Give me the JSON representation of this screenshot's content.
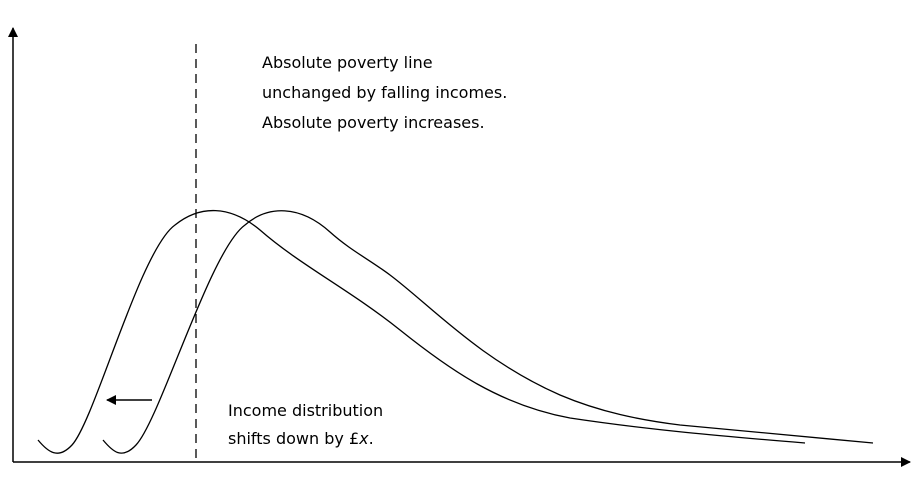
{
  "annotations": {
    "poverty_line": [
      "Absolute poverty line",
      "unchanged by falling incomes.",
      "Absolute poverty increases."
    ],
    "shift": {
      "line1": "Income distribution",
      "line2_before": "shifts down by £",
      "line2_italic": "x",
      "line2_after": "."
    }
  }
}
